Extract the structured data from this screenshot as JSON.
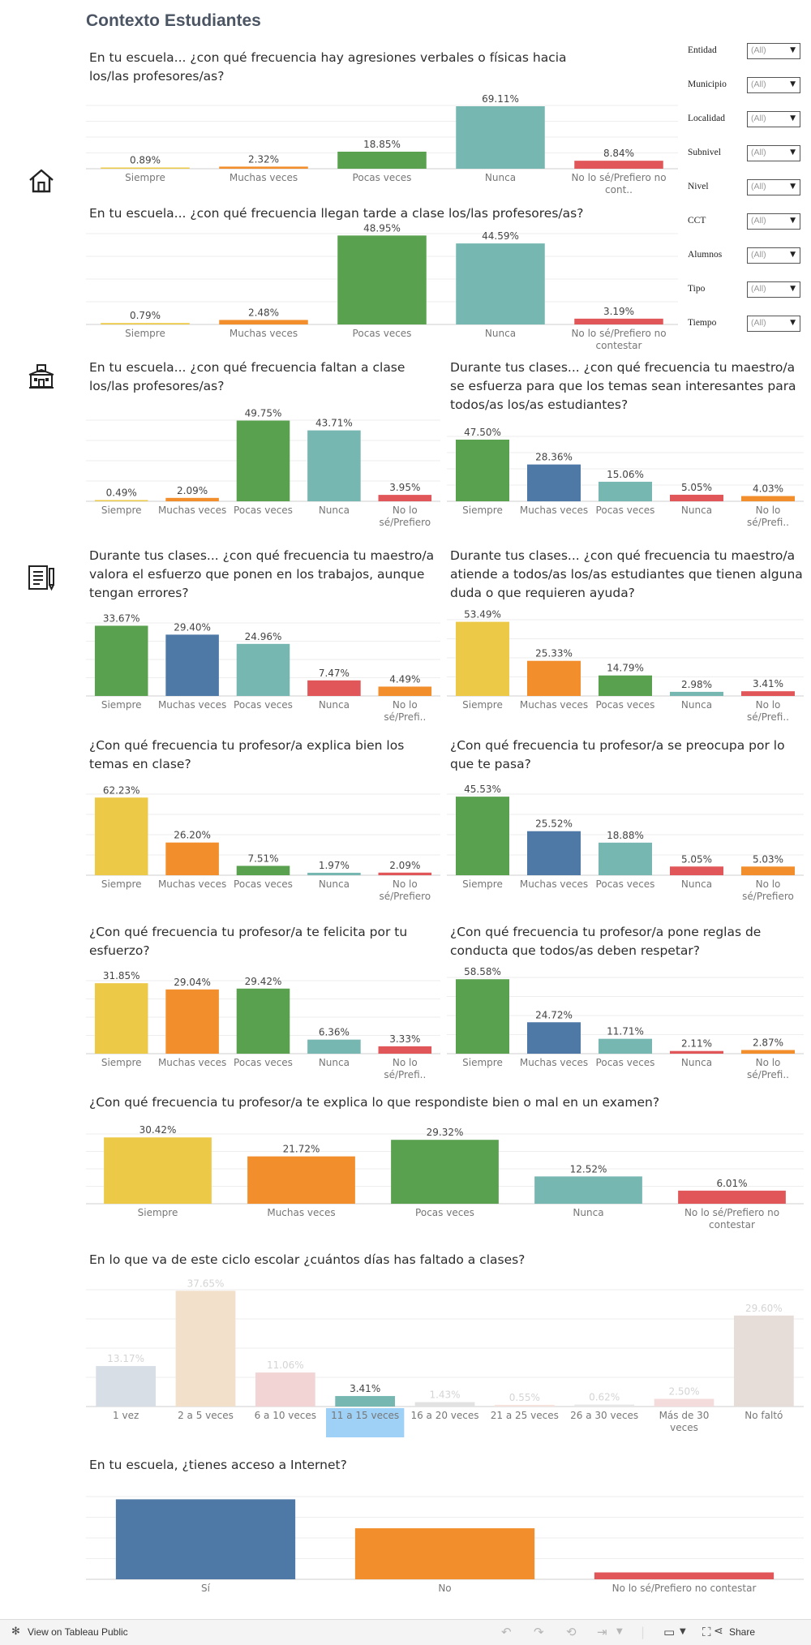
{
  "page": {
    "title": "Contexto Estudiantes"
  },
  "filters": [
    {
      "label": "Entidad",
      "value": "(All)"
    },
    {
      "label": "Municipio",
      "value": "(All)"
    },
    {
      "label": "Localidad",
      "value": "(All)"
    },
    {
      "label": "Subnivel",
      "value": "(All)"
    },
    {
      "label": "Nivel",
      "value": "(All)"
    },
    {
      "label": "CCT",
      "value": "(All)"
    },
    {
      "label": "Alumnos",
      "value": "(All)"
    },
    {
      "label": "Tipo",
      "value": "(All)"
    },
    {
      "label": "Tiempo",
      "value": "(All)"
    }
  ],
  "footer": {
    "tableau_link": "View on Tableau Public",
    "share_label": "Share"
  },
  "chart_data": [
    {
      "type": "bar",
      "title": "En tu escuela... ¿con qué frecuencia hay agresiones verbales o físicas hacia los/las profesores/as?",
      "categories": [
        "Siempre",
        "Muchas veces",
        "Pocas veces",
        "Nunca",
        "No lo sé/Prefiero no cont.."
      ],
      "values": [
        0.89,
        2.32,
        18.85,
        69.11,
        8.84
      ],
      "labels": [
        "0.89%",
        "2.32%",
        "18.85%",
        "69.11%",
        "8.84%"
      ],
      "colors": [
        "#edc948",
        "#f28e2b",
        "#59a14f",
        "#76b7b2",
        "#e15759"
      ],
      "ylim": [
        0,
        70
      ]
    },
    {
      "type": "bar",
      "title": "En tu escuela... ¿con qué frecuencia llegan tarde a clase los/las profesores/as?",
      "categories": [
        "Siempre",
        "Muchas veces",
        "Pocas veces",
        "Nunca",
        "No lo sé/Prefiero no contestar"
      ],
      "values": [
        0.79,
        2.48,
        48.95,
        44.59,
        3.19
      ],
      "labels": [
        "0.79%",
        "2.48%",
        "48.95%",
        "44.59%",
        "3.19%"
      ],
      "colors": [
        "#edc948",
        "#f28e2b",
        "#59a14f",
        "#76b7b2",
        "#e15759"
      ],
      "ylim": [
        0,
        50
      ]
    },
    {
      "type": "bar",
      "title": "En tu escuela... ¿con qué frecuencia faltan a clase los/las profesores/as?",
      "categories": [
        "Siempre",
        "Muchas veces",
        "Pocas veces",
        "Nunca",
        "No lo sé/Prefiero no contestar"
      ],
      "values": [
        0.49,
        2.09,
        49.75,
        43.71,
        3.95
      ],
      "labels": [
        "0.49%",
        "2.09%",
        "49.75%",
        "43.71%",
        "3.95%"
      ],
      "colors": [
        "#edc948",
        "#f28e2b",
        "#59a14f",
        "#76b7b2",
        "#e15759"
      ],
      "ylim": [
        0,
        50
      ]
    },
    {
      "type": "bar",
      "title": "Durante tus clases... ¿con qué frecuencia tu maestro/a se esfuerza para que los temas sean interesantes para todos/as los/as estudiantes?",
      "categories": [
        "Siempre",
        "Muchas veces",
        "Pocas veces",
        "Nunca",
        "No lo sé/Prefi.."
      ],
      "values": [
        47.5,
        28.36,
        15.06,
        5.05,
        4.03
      ],
      "labels": [
        "47.50%",
        "28.36%",
        "15.06%",
        "5.05%",
        "4.03%"
      ],
      "colors": [
        "#59a14f",
        "#4e79a7",
        "#76b7b2",
        "#e15759",
        "#f28e2b"
      ],
      "ylim": [
        0,
        50
      ]
    },
    {
      "type": "bar",
      "title": "Durante tus clases... ¿con qué frecuencia tu maestro/a valora el esfuerzo que ponen en los trabajos, aunque tengan errores?",
      "categories": [
        "Siempre",
        "Muchas veces",
        "Pocas veces",
        "Nunca",
        "No lo sé/Prefi.."
      ],
      "values": [
        33.67,
        29.4,
        24.96,
        7.47,
        4.49
      ],
      "labels": [
        "33.67%",
        "29.40%",
        "24.96%",
        "7.47%",
        "4.49%"
      ],
      "colors": [
        "#59a14f",
        "#4e79a7",
        "#76b7b2",
        "#e15759",
        "#f28e2b"
      ],
      "ylim": [
        0,
        35
      ]
    },
    {
      "type": "bar",
      "title": "Durante tus clases... ¿con qué frecuencia tu maestro/a atiende a todos/as los/as estudiantes que tienen alguna duda o que requieren ayuda?",
      "categories": [
        "Siempre",
        "Muchas veces",
        "Pocas veces",
        "Nunca",
        "No lo sé/Prefi.."
      ],
      "values": [
        53.49,
        25.33,
        14.79,
        2.98,
        3.41
      ],
      "labels": [
        "53.49%",
        "25.33%",
        "14.79%",
        "2.98%",
        "3.41%"
      ],
      "colors": [
        "#edc948",
        "#f28e2b",
        "#59a14f",
        "#76b7b2",
        "#e15759"
      ],
      "ylim": [
        0,
        55
      ]
    },
    {
      "type": "bar",
      "title": "¿Con qué frecuencia tu profesor/a explica bien los temas en clase?",
      "categories": [
        "Siempre",
        "Muchas veces",
        "Pocas veces",
        "Nunca",
        "No lo sé/Prefiero n.."
      ],
      "values": [
        62.23,
        26.2,
        7.51,
        1.97,
        2.09
      ],
      "labels": [
        "62.23%",
        "26.20%",
        "7.51%",
        "1.97%",
        "2.09%"
      ],
      "colors": [
        "#edc948",
        "#f28e2b",
        "#59a14f",
        "#76b7b2",
        "#e15759"
      ],
      "ylim": [
        0,
        65
      ]
    },
    {
      "type": "bar",
      "title": "¿Con qué frecuencia tu profesor/a se preocupa por lo que te pasa?",
      "categories": [
        "Siempre",
        "Muchas veces",
        "Pocas veces",
        "Nunca",
        "No lo sé/Prefiero n.."
      ],
      "values": [
        45.53,
        25.52,
        18.88,
        5.05,
        5.03
      ],
      "labels": [
        "45.53%",
        "25.52%",
        "18.88%",
        "5.05%",
        "5.03%"
      ],
      "colors": [
        "#59a14f",
        "#4e79a7",
        "#76b7b2",
        "#e15759",
        "#f28e2b"
      ],
      "ylim": [
        0,
        47
      ]
    },
    {
      "type": "bar",
      "title": "¿Con qué frecuencia tu profesor/a te felicita por tu esfuerzo?",
      "categories": [
        "Siempre",
        "Muchas veces",
        "Pocas veces",
        "Nunca",
        "No lo sé/Prefi.."
      ],
      "values": [
        31.85,
        29.04,
        29.42,
        6.36,
        3.33
      ],
      "labels": [
        "31.85%",
        "29.04%",
        "29.42%",
        "6.36%",
        "3.33%"
      ],
      "colors": [
        "#edc948",
        "#f28e2b",
        "#59a14f",
        "#76b7b2",
        "#e15759"
      ],
      "ylim": [
        0,
        33
      ]
    },
    {
      "type": "bar",
      "title": "¿Con qué frecuencia tu profesor/a pone reglas de conducta que todos/as deben respetar?",
      "categories": [
        "Siempre",
        "Muchas veces",
        "Pocas veces",
        "Nunca",
        "No lo sé/Prefi.."
      ],
      "values": [
        58.58,
        24.72,
        11.71,
        2.11,
        2.87
      ],
      "labels": [
        "58.58%",
        "24.72%",
        "11.71%",
        "2.11%",
        "2.87%"
      ],
      "colors": [
        "#59a14f",
        "#4e79a7",
        "#76b7b2",
        "#e15759",
        "#f28e2b"
      ],
      "ylim": [
        0,
        60
      ]
    },
    {
      "type": "bar",
      "title": "¿Con qué frecuencia tu profesor/a te explica lo que respondiste bien o mal en un examen?",
      "categories": [
        "Siempre",
        "Muchas veces",
        "Pocas veces",
        "Nunca",
        "No lo sé/Prefiero no contestar"
      ],
      "values": [
        30.42,
        21.72,
        29.32,
        12.52,
        6.01
      ],
      "labels": [
        "30.42%",
        "21.72%",
        "29.32%",
        "12.52%",
        "6.01%"
      ],
      "colors": [
        "#edc948",
        "#f28e2b",
        "#59a14f",
        "#76b7b2",
        "#e15759"
      ],
      "ylim": [
        0,
        32
      ]
    },
    {
      "type": "bar",
      "title": "En lo que va de este ciclo escolar ¿cuántos días has faltado a clases?",
      "categories": [
        "1 vez",
        "2 a 5 veces",
        "6 a 10 veces",
        "11 a 15 veces",
        "16 a 20 veces",
        "21 a 25 veces",
        "26 a 30 veces",
        "Más de 30 veces",
        "No faltó"
      ],
      "values": [
        13.17,
        37.65,
        11.06,
        3.41,
        1.43,
        0.55,
        0.62,
        2.5,
        29.6
      ],
      "labels": [
        "13.17%",
        "37.65%",
        "11.06%",
        "3.41%",
        "1.43%",
        "0.55%",
        "0.62%",
        "2.50%",
        "29.60%"
      ],
      "colors": [
        "#d7dee6",
        "#f3e0cb",
        "#f2d4d4",
        "#76b7b2",
        "#e2e2e2",
        "#f6e3dd",
        "#e7e7e7",
        "#f5dcdc",
        "#e6dcd8"
      ],
      "selected": "11 a 15 veces",
      "ylim": [
        0,
        38
      ]
    },
    {
      "type": "bar",
      "title": "En tu escuela, ¿tienes acceso a Internet?",
      "categories": [
        "Sí",
        "No",
        "No lo sé/Prefiero no contestar"
      ],
      "values": [
        58,
        37,
        5
      ],
      "labels": [
        "",
        "",
        ""
      ],
      "colors": [
        "#4e79a7",
        "#f28e2b",
        "#e15759"
      ],
      "ylim": [
        0,
        60
      ]
    }
  ]
}
